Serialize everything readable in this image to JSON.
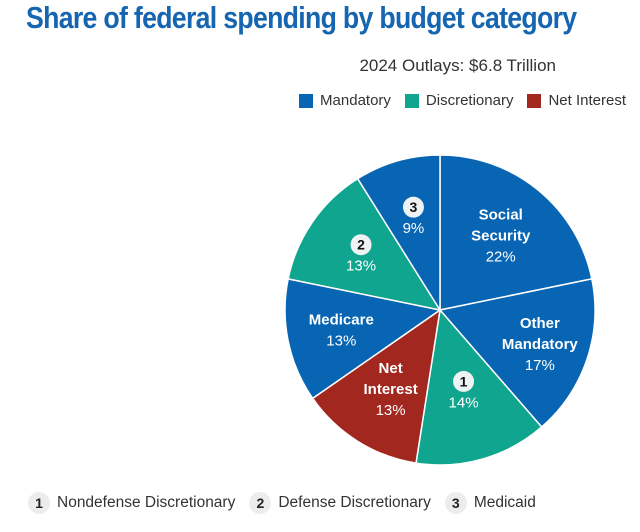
{
  "chart_data": {
    "type": "pie",
    "title": "Share of federal spending by budget category",
    "subtitle": "2024 Outlays: $6.8 Trillion",
    "legend_position": "top-right",
    "categories": [
      {
        "name": "Mandatory",
        "color": "#0765b3"
      },
      {
        "name": "Discretionary",
        "color": "#10a58e"
      },
      {
        "name": "Net Interest",
        "color": "#a1271f"
      }
    ],
    "slices": [
      {
        "name": "Social Security",
        "label_lines": [
          "Social",
          "Security"
        ],
        "value": 22,
        "pct_label": "22%",
        "category": "Mandatory"
      },
      {
        "name": "Other Mandatory",
        "label_lines": [
          "Other",
          "Mandatory"
        ],
        "value": 17,
        "pct_label": "17%",
        "category": "Mandatory"
      },
      {
        "name": "Nondefense Discretionary",
        "badge": "1",
        "value": 14,
        "pct_label": "14%",
        "category": "Discretionary"
      },
      {
        "name": "Net Interest",
        "label_lines": [
          "Net",
          "Interest"
        ],
        "value": 13,
        "pct_label": "13%",
        "category": "Net Interest"
      },
      {
        "name": "Medicare",
        "label_lines": [
          "Medicare"
        ],
        "value": 13,
        "pct_label": "13%",
        "category": "Mandatory"
      },
      {
        "name": "Defense Discretionary",
        "badge": "2",
        "value": 13,
        "pct_label": "13%",
        "category": "Discretionary"
      },
      {
        "name": "Medicaid",
        "badge": "3",
        "value": 9,
        "pct_label": "9%",
        "category": "Mandatory"
      }
    ],
    "footnotes": [
      {
        "badge": "1",
        "label": "Nondefense Discretionary"
      },
      {
        "badge": "2",
        "label": "Defense Discretionary"
      },
      {
        "badge": "3",
        "label": "Medicaid"
      }
    ]
  }
}
